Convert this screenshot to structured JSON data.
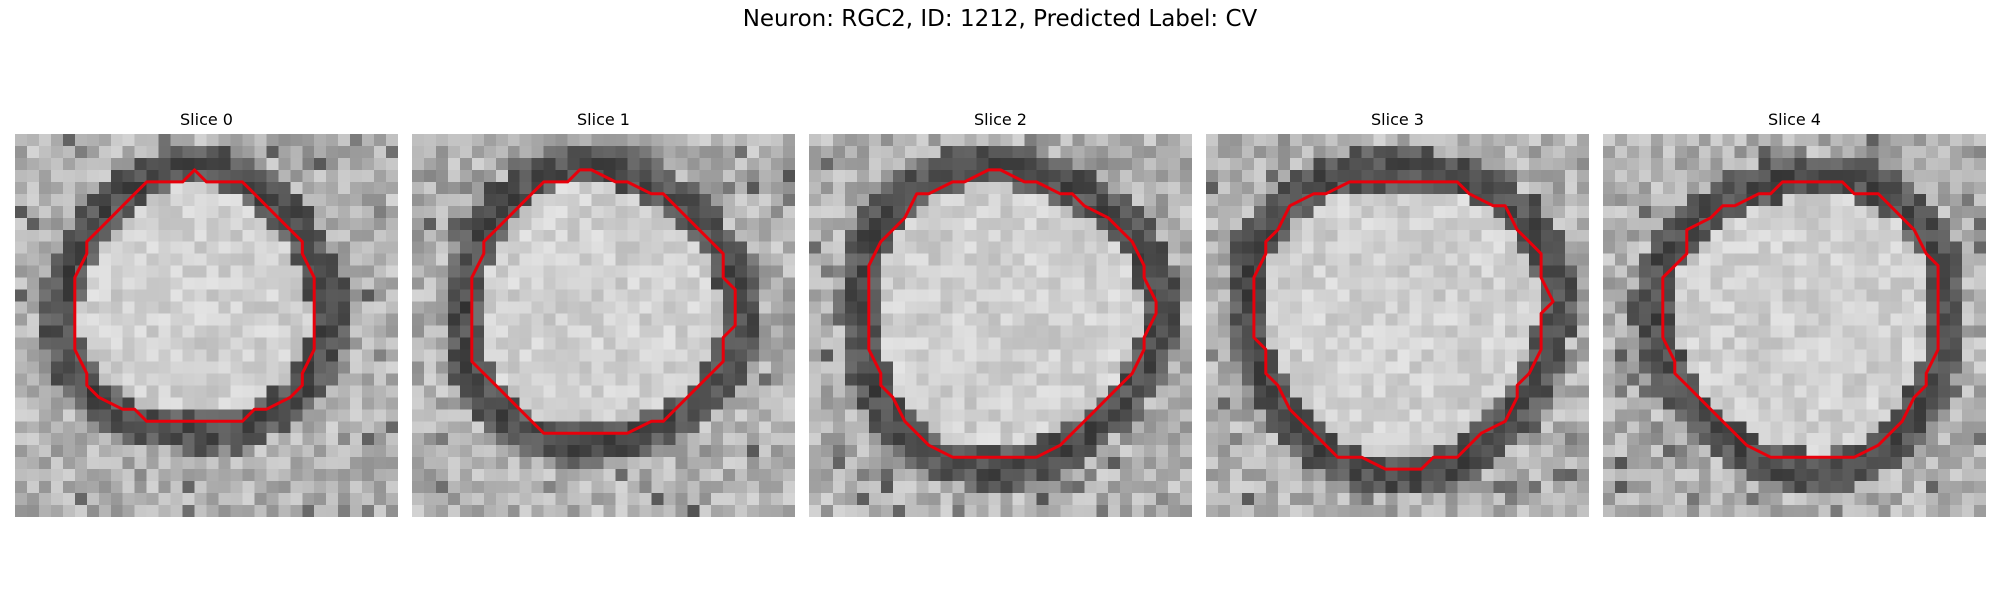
{
  "figure": {
    "title": "Neuron: RGC2, ID: 1212, Predicted Label: CV"
  },
  "colors": {
    "contour": "#e8000b",
    "image_colormap": "gray"
  },
  "panels": [
    {
      "title": "Slice 0"
    },
    {
      "title": "Slice 1"
    },
    {
      "title": "Slice 2"
    },
    {
      "title": "Slice 3"
    },
    {
      "title": "Slice 4"
    }
  ]
}
